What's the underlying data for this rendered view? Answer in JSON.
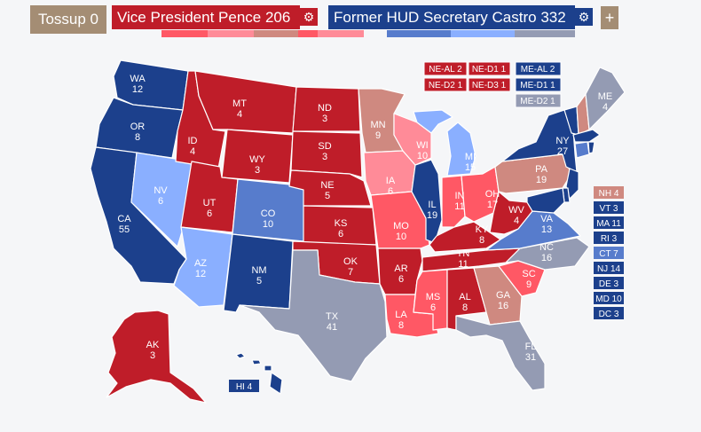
{
  "header": {
    "tossup_label": "Tossup 0",
    "rep_label": "Vice President Pence 206",
    "dem_label": "Former HUD Secretary Castro 332",
    "gear_icon": "gear-icon",
    "plus_label": "+"
  },
  "colors": {
    "tossup": "#a48d74",
    "safe_r": "#bf1d29",
    "likely_r": "#ff5865",
    "lean_r": "#ff8b98",
    "tilt_r": "#cf8980",
    "safe_d": "#1c408c",
    "likely_d": "#577ccc",
    "lean_d": "#8aafff",
    "tilt_d": "#949bb3",
    "gray": "#949bb3"
  },
  "states": {
    "WA": "WA\n12",
    "OR": "OR\n8",
    "CA": "CA\n55",
    "NV": "NV\n6",
    "ID": "ID\n4",
    "MT": "MT\n4",
    "WY": "WY\n3",
    "UT": "UT\n6",
    "AZ": "AZ\n12",
    "CO": "CO\n10",
    "NM": "NM\n5",
    "ND": "ND\n3",
    "SD": "SD\n3",
    "NE": "NE\n5",
    "KS": "KS\n6",
    "OK": "OK\n7",
    "TX": "TX\n41",
    "MN": "MN\n9",
    "IA": "IA\n6",
    "MO": "MO\n10",
    "AR": "AR\n6",
    "LA": "LA\n8",
    "WI": "WI\n10",
    "IL": "IL\n19",
    "MI": "MI\n15",
    "IN": "IN\n11",
    "OH": "OH\n17",
    "KY": "KY\n8",
    "TN": "TN\n11",
    "MS": "MS\n6",
    "AL": "AL\n8",
    "GA": "GA\n16",
    "FL": "FL\n31",
    "SC": "SC\n9",
    "NC": "NC\n16",
    "VA": "VA\n13",
    "WV": "WV\n4",
    "PA": "PA\n19",
    "NY": "NY\n27",
    "ME": "ME\n4",
    "AK": "AK\n3",
    "HI": "HI 4"
  },
  "districts": {
    "ne_al": "NE-AL 2",
    "ne_d1": "NE-D1 1",
    "ne_d2": "NE-D2 1",
    "ne_d3": "NE-D3 1",
    "me_al": "ME-AL 2",
    "me_d1": "ME-D1 1",
    "me_d2": "ME-D2 1"
  },
  "small_states": {
    "nh": "NH 4",
    "vt": "VT 3",
    "ma": "MA 11",
    "ri": "RI 3",
    "ct": "CT 7",
    "nj": "NJ 14",
    "de": "DE 3",
    "md": "MD 10",
    "dc": "DC 3"
  }
}
